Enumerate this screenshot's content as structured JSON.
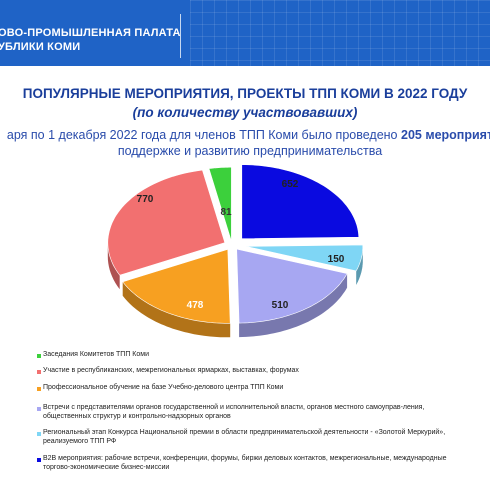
{
  "header": {
    "org_line1": "ОВО-ПРОМЫШЛЕННАЯ ПАЛАТА",
    "org_line2": "УБЛИКИ КОМИ"
  },
  "title": "ПОПУЛЯРНЫЕ МЕРОПРИЯТИЯ, ПРОЕКТЫ ТПП КОМИ В 2022 ГОДУ",
  "subtitle": "(по количеству участвовавших)",
  "intro": {
    "line1_start": "аря по 1 декабря 2022 года для членов ТПП Коми было проведено ",
    "line1_bold": "205 мероприят",
    "line2": "поддержке и развитию предпринимательства"
  },
  "chart_data": {
    "type": "pie",
    "style": "3d-exploded",
    "series": [
      {
        "label": "Заседания Комитетов ТПП Коми",
        "value": 81,
        "color": "#3cd03c"
      },
      {
        "label": "Участие в республиканских, межрегиональных ярмарках, выставках, форумах",
        "value": 770,
        "color": "#f27070"
      },
      {
        "label": "Профессиональное обучение на базе Учебно-делового центра ТПП Коми",
        "value": 478,
        "color": "#f7a021"
      },
      {
        "label": "Встречи с представителями органов государственной и исполнительной власти, органов местного самоуправ-ления, общественных структур и контрольно-надзорных органов",
        "value": 510,
        "color": "#a7a7f2"
      },
      {
        "label": "Региональный этап Конкурса Национальной премии в области предпринимательской деятельности - «Золотой Меркурий», реализуемого ТПП РФ",
        "value": 150,
        "color": "#7fd6f5"
      },
      {
        "label": "B2B мероприятия: рабочие встречи, конференции, форумы, биржи деловых контактов, межрегиональные, международные торгово-экономические бизнес-миссии",
        "value": 652,
        "color": "#0a0ae0"
      }
    ],
    "value_labels": [
      "81",
      "770",
      "478",
      "510",
      "150",
      "652"
    ],
    "legend_position": "bottom"
  }
}
